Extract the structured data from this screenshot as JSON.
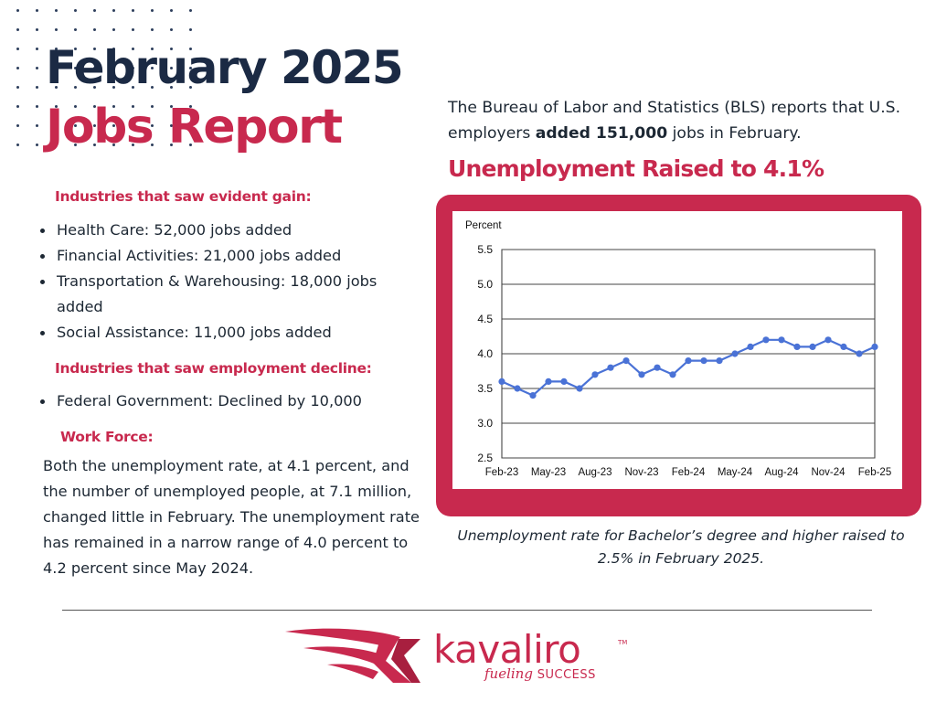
{
  "header": {
    "title_line1": "February 2025",
    "title_line2": "Jobs Report"
  },
  "gains": {
    "heading": "Industries that saw evident gain:",
    "items": [
      "Health Care: 52,000 jobs added",
      "Financial Activities: 21,000 jobs added",
      "Transportation & Warehousing: 18,000 jobs added",
      "Social Assistance: 11,000 jobs added"
    ]
  },
  "declines": {
    "heading": "Industries that saw employment decline:",
    "items": [
      "Federal Government: Declined by 10,000"
    ]
  },
  "workforce": {
    "heading": "Work Force:",
    "text": "Both the unemployment rate, at 4.1 percent, and the number of unemployed people, at 7.1 million, changed little in February. The unemployment rate has remained in a narrow range of 4.0 percent to 4.2 percent since May 2024."
  },
  "intro": {
    "before": "The Bureau of Labor and Statistics (BLS) reports that U.S. employers ",
    "bold": "added 151,000",
    "after": " jobs in February."
  },
  "headline": "Unemployment Raised to 4.1%",
  "chart_data": {
    "type": "line",
    "title": "",
    "ylabel": "Percent",
    "xlabel": "",
    "ylim": [
      2.5,
      5.5
    ],
    "yticks": [
      "5.5",
      "5.0",
      "4.5",
      "4.0",
      "3.5",
      "3.0",
      "2.5"
    ],
    "xtick_labels": [
      "Feb-23",
      "May-23",
      "Aug-23",
      "Nov-23",
      "Feb-24",
      "May-24",
      "Aug-24",
      "Nov-24",
      "Feb-25"
    ],
    "grid": true,
    "color": "#4a72d6",
    "x": [
      "Feb-23",
      "Mar-23",
      "Apr-23",
      "May-23",
      "Jun-23",
      "Jul-23",
      "Aug-23",
      "Sep-23",
      "Oct-23",
      "Nov-23",
      "Dec-23",
      "Jan-24",
      "Feb-24",
      "Mar-24",
      "Apr-24",
      "May-24",
      "Jun-24",
      "Jul-24",
      "Aug-24",
      "Sep-24",
      "Oct-24",
      "Nov-24",
      "Dec-24",
      "Jan-25",
      "Feb-25"
    ],
    "values": [
      3.6,
      3.5,
      3.4,
      3.6,
      3.6,
      3.5,
      3.7,
      3.8,
      3.9,
      3.7,
      3.8,
      3.7,
      3.9,
      3.9,
      3.9,
      4.0,
      4.1,
      4.2,
      4.2,
      4.1,
      4.1,
      4.2,
      4.1,
      4.0,
      4.1
    ]
  },
  "caption": "Unemployment rate for Bachelor’s degree and higher raised to 2.5% in February 2025.",
  "footer": {
    "brand": "kavaliro",
    "trademark": "TM",
    "tagline_script": "fueling",
    "tagline_caps": "SUCCESS"
  },
  "colors": {
    "navy": "#1b2a44",
    "accent": "#c8294e",
    "line": "#4a72d6"
  }
}
